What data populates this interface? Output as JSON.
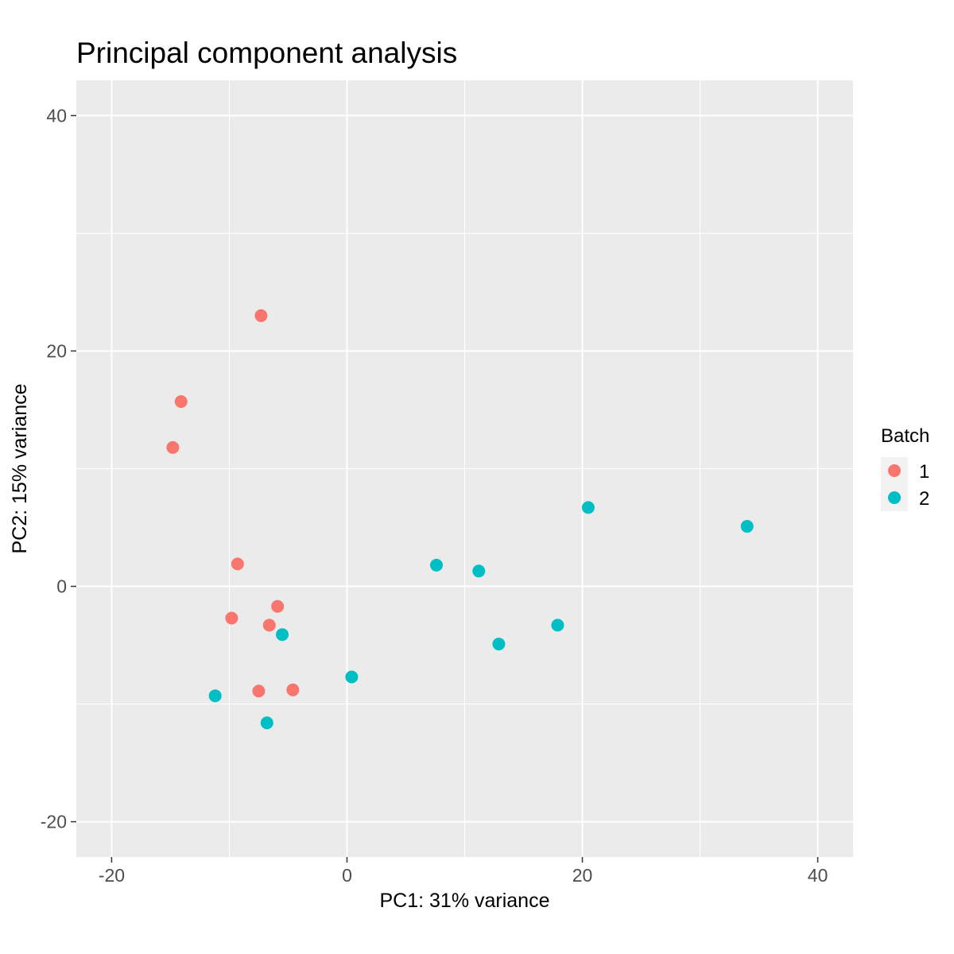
{
  "chart_data": {
    "type": "scatter",
    "title": "Principal component analysis",
    "xlabel": "PC1: 31% variance",
    "ylabel": "PC2: 15% variance",
    "xlim": [
      -23,
      43
    ],
    "ylim": [
      -23,
      43
    ],
    "x_ticks": [
      -20,
      0,
      20,
      40
    ],
    "y_ticks": [
      -20,
      0,
      20,
      40
    ],
    "x_tick_labels": [
      "-20",
      "0",
      "20",
      "40"
    ],
    "y_tick_labels": [
      "-20",
      "0",
      "20",
      "40"
    ],
    "grid": true,
    "legend": {
      "title": "Batch",
      "position": "right"
    },
    "series": [
      {
        "name": "1",
        "color": "#F8766D",
        "points": [
          {
            "x": -7.3,
            "y": 23.0
          },
          {
            "x": -14.1,
            "y": 15.7
          },
          {
            "x": -14.8,
            "y": 11.8
          },
          {
            "x": -9.3,
            "y": 1.9
          },
          {
            "x": -9.8,
            "y": -2.7
          },
          {
            "x": -5.9,
            "y": -1.7
          },
          {
            "x": -6.6,
            "y": -3.3
          },
          {
            "x": -7.5,
            "y": -8.9
          },
          {
            "x": -4.6,
            "y": -8.8
          }
        ]
      },
      {
        "name": "2",
        "color": "#00BFC4",
        "points": [
          {
            "x": -5.5,
            "y": -4.1
          },
          {
            "x": -11.2,
            "y": -9.3
          },
          {
            "x": -6.8,
            "y": -11.6
          },
          {
            "x": 0.4,
            "y": -7.7
          },
          {
            "x": 7.6,
            "y": 1.8
          },
          {
            "x": 11.2,
            "y": 1.3
          },
          {
            "x": 12.9,
            "y": -4.9
          },
          {
            "x": 17.9,
            "y": -3.3
          },
          {
            "x": 20.5,
            "y": 6.7
          },
          {
            "x": 34.0,
            "y": 5.1
          }
        ]
      }
    ]
  }
}
